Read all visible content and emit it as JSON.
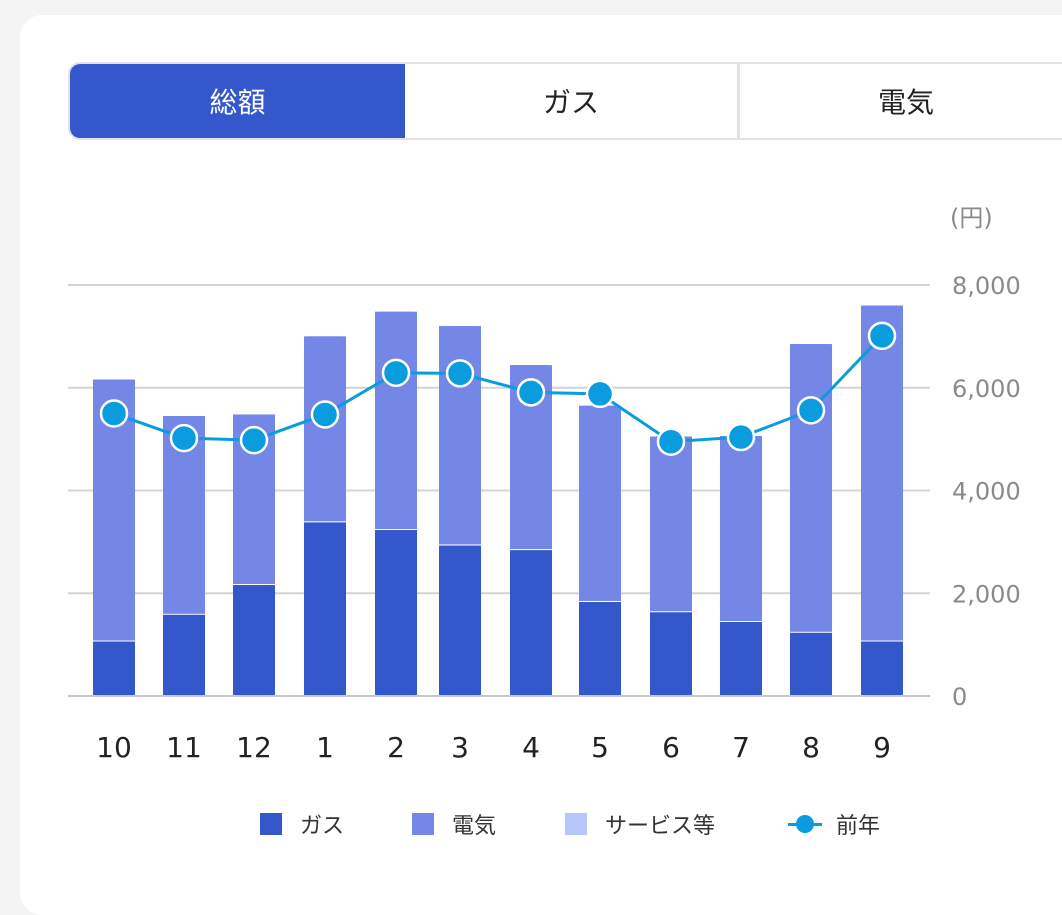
{
  "tabs": [
    {
      "label": "総額",
      "active": true
    },
    {
      "label": "ガス",
      "active": false
    },
    {
      "label": "電気",
      "active": false
    }
  ],
  "chart_data": {
    "type": "bar",
    "stacked": true,
    "unit_label": "(円)",
    "categories": [
      "10",
      "11",
      "12",
      "1",
      "2",
      "3",
      "4",
      "5",
      "6",
      "7",
      "8",
      "9"
    ],
    "series": [
      {
        "name": "ガス",
        "type": "bar",
        "color": "#3458cc",
        "values": [
          1080,
          1600,
          2180,
          3400,
          3250,
          2950,
          2860,
          1850,
          1650,
          1460,
          1250,
          1080
        ]
      },
      {
        "name": "電気",
        "type": "bar",
        "color": "#7486e6",
        "values": [
          5080,
          3850,
          3300,
          3600,
          4230,
          4250,
          3580,
          3800,
          3400,
          3600,
          5600,
          6520
        ]
      },
      {
        "name": "サービス等",
        "type": "bar",
        "color": "#b6c6f8",
        "values": [
          0,
          0,
          0,
          0,
          0,
          0,
          0,
          0,
          0,
          0,
          0,
          0
        ]
      },
      {
        "name": "前年",
        "type": "line",
        "color": "#0b9ce0",
        "values": [
          5500,
          5020,
          4980,
          5480,
          6290,
          6280,
          5910,
          5880,
          4950,
          5040,
          5560,
          7010
        ]
      }
    ],
    "ylim": [
      0,
      8000
    ],
    "yticks": [
      "0",
      "2,000",
      "4,000",
      "6,000",
      "8,000"
    ],
    "ytick_values": [
      0,
      2000,
      4000,
      6000,
      8000
    ],
    "grid": true,
    "legend_position": "bottom"
  }
}
